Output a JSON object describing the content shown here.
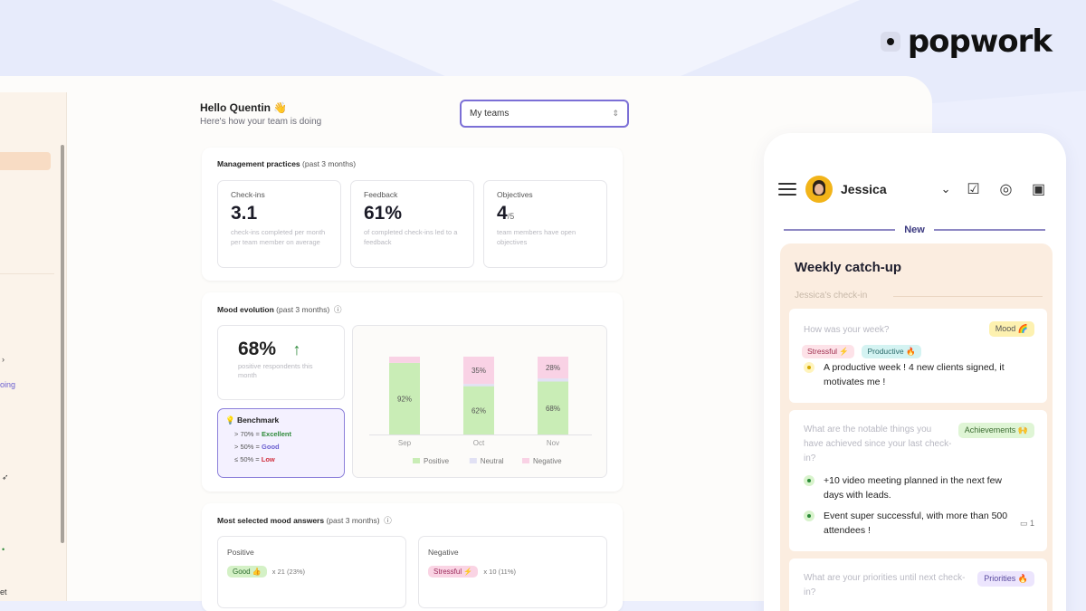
{
  "brand": {
    "name": "popwork"
  },
  "desktop": {
    "greeting": {
      "hello": "Hello Quentin 👋",
      "sub": "Here's how your team is doing"
    },
    "team_select": {
      "value": "My teams"
    },
    "sidebar": {
      "frag_going": "oing",
      "frag_et": "et"
    },
    "management": {
      "title": "Management practices",
      "period": "(past 3 months)",
      "stats": [
        {
          "label": "Check-ins",
          "value": "3.1",
          "suffix": "",
          "desc": "check-ins completed per month per team member on average"
        },
        {
          "label": "Feedback",
          "value": "61%",
          "suffix": "",
          "desc": "of completed check-ins led to a feedback"
        },
        {
          "label": "Objectives",
          "value": "4",
          "suffix": "/5",
          "desc": "team members have open objectives"
        }
      ]
    },
    "mood": {
      "title": "Mood evolution",
      "period": "(past 3 months)",
      "percent": "68%",
      "percent_desc": "positive respondents this month",
      "benchmark": {
        "title": "💡 Benchmark",
        "rows": [
          {
            "prefix": "> 70% = ",
            "label": "Excellent"
          },
          {
            "prefix": "> 50% = ",
            "label": "Good"
          },
          {
            "prefix": "≤ 50% = ",
            "label": "Low"
          }
        ]
      }
    },
    "answers": {
      "title": "Most selected mood answers",
      "period": "(past 3 months)",
      "positive": {
        "label": "Positive",
        "chip": "Good 👍",
        "count": "x 21 (23%)"
      },
      "negative": {
        "label": "Negative",
        "chip": "Stressful ⚡",
        "count": "x 10 (11%)"
      }
    }
  },
  "chart_data": {
    "type": "bar",
    "stacked": true,
    "categories": [
      "Sep",
      "Oct",
      "Nov"
    ],
    "series": [
      {
        "name": "Positive",
        "values": [
          92,
          62,
          68
        ],
        "color": "#c9edb6"
      },
      {
        "name": "Neutral",
        "values": [
          0,
          3,
          4
        ],
        "color": "#e1e1f4"
      },
      {
        "name": "Negative",
        "values": [
          8,
          35,
          28
        ],
        "color": "#f9d2e5"
      }
    ],
    "data_labels": {
      "Positive": [
        "92%",
        "62%",
        "68%"
      ],
      "Negative": [
        "",
        "35%",
        "28%"
      ]
    },
    "ylim": [
      0,
      100
    ],
    "legend": "bottom"
  },
  "phone": {
    "user": "Jessica",
    "new_label": "New",
    "title": "Weekly catch-up",
    "subtitle": "Jessica's check-in",
    "questions": [
      {
        "question": "How was your week?",
        "tag": "Mood 🌈",
        "chips": [
          "Stressful ⚡",
          "Productive 🔥"
        ],
        "answers": [
          "A productive week ! 4 new clients signed, it motivates me !"
        ]
      },
      {
        "question": "What are the notable things you have achieved since your last check-in?",
        "tag": "Achievements 🙌",
        "answers": [
          "+10 video meeting planned in the next few days with leads.",
          "Event super successful, with more than 500 attendees !"
        ],
        "comments": "1"
      },
      {
        "question": "What are your priorities until next check-in?",
        "tag": "Priorities 🔥"
      }
    ]
  },
  "colors": {
    "accent": "#7b6fd6",
    "positive": "#c9edb6",
    "negative": "#f9d2e5",
    "neutral": "#e1e1f4"
  }
}
